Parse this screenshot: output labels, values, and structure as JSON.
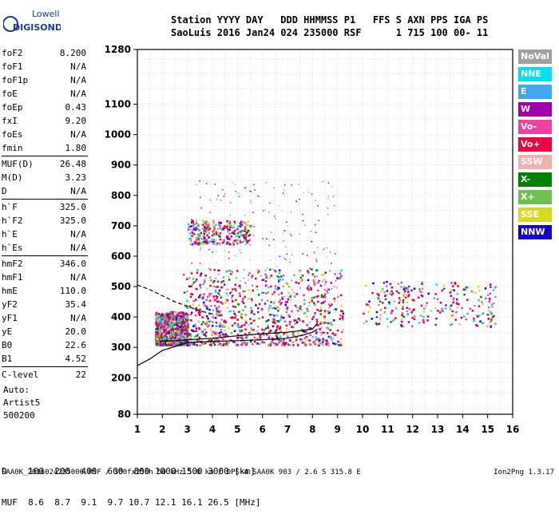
{
  "header": {
    "logo_line1": "Lowell",
    "logo_line2": "DIGISONDE",
    "line1": "Station YYYY DAY   DDD HHMMSS P1   FFS S AXN PPS IGA PS",
    "line2": "SaoLuis 2016 Jan24 024 235000 RSF      1 715 100 00- 11"
  },
  "params": [
    {
      "name": "foF2",
      "value": "8.200"
    },
    {
      "name": "foF1",
      "value": "N/A"
    },
    {
      "name": "foF1p",
      "value": "N/A"
    },
    {
      "name": "foE",
      "value": "N/A"
    },
    {
      "name": "foEp",
      "value": "0.43"
    },
    {
      "name": "fxI",
      "value": "9.20"
    },
    {
      "name": "foEs",
      "value": "N/A"
    },
    {
      "name": "fmin",
      "value": "1.80"
    },
    {
      "name": "MUF(D)",
      "value": "26.48"
    },
    {
      "name": "M(D)",
      "value": "3.23"
    },
    {
      "name": "D",
      "value": "N/A"
    },
    {
      "name": "h`F",
      "value": "325.0"
    },
    {
      "name": "h`F2",
      "value": "325.0"
    },
    {
      "name": "h`E",
      "value": "N/A"
    },
    {
      "name": "h`Es",
      "value": "N/A"
    },
    {
      "name": "hmF2",
      "value": "346.0"
    },
    {
      "name": "hmF1",
      "value": "N/A"
    },
    {
      "name": "hmE",
      "value": "110.0"
    },
    {
      "name": "yF2",
      "value": "35.4"
    },
    {
      "name": "yF1",
      "value": "N/A"
    },
    {
      "name": "yE",
      "value": "20.0"
    },
    {
      "name": "B0",
      "value": "22.6"
    },
    {
      "name": "B1",
      "value": "4.52"
    },
    {
      "name": "C-level",
      "value": "22"
    }
  ],
  "autoscale": {
    "label": "Auto:",
    "artist": "Artist5",
    "version": "500200"
  },
  "legend": [
    {
      "label": "NoVal",
      "color": "#a0a0a0"
    },
    {
      "label": "NNE",
      "color": "#00e0f0"
    },
    {
      "label": "E",
      "color": "#40a8f0"
    },
    {
      "label": "W",
      "color": "#a000a8"
    },
    {
      "label": "Vo-",
      "color": "#f040a0"
    },
    {
      "label": "Vo+",
      "color": "#f00040"
    },
    {
      "label": "SSW",
      "color": "#f0b0b0"
    },
    {
      "label": "X-",
      "color": "#008000"
    },
    {
      "label": "X+",
      "color": "#70c050"
    },
    {
      "label": "SSE",
      "color": "#d8d820"
    },
    {
      "label": "NNW",
      "color": "#1800c8"
    }
  ],
  "dmuf": {
    "d_line": "D    100  200  400  600  800 1000 1500 3000 [km]",
    "muf_line": "MUF  8.6  8.7  9.1  9.7 10.7 12.1 16.1 26.5 [MHz]"
  },
  "footer": {
    "left": "SAA0K_2016024235000.RSF / 300fx256h 50 kHz 5.0 km / DPS-4 SAA0K 903 / 2.6 S 315.8 E",
    "right": "Ion2Png 1.3.17"
  },
  "chart_data": {
    "type": "scatter",
    "x_ticks": [
      1,
      2,
      3,
      4,
      5,
      6,
      7,
      8,
      9,
      10,
      11,
      12,
      13,
      14,
      15,
      16
    ],
    "y_ticks": [
      80,
      200,
      300,
      400,
      500,
      600,
      700,
      800,
      900,
      1000,
      1100,
      1280
    ],
    "xlim": [
      1,
      16
    ],
    "ylim": [
      80,
      1280
    ],
    "grid": true,
    "clusters": [
      {
        "freq": [
          1.7,
          3.0
        ],
        "height": [
          310,
          420
        ],
        "density": "high"
      },
      {
        "freq": [
          2.8,
          9.2
        ],
        "height": [
          310,
          560
        ],
        "density": "high"
      },
      {
        "freq": [
          3.0,
          5.5
        ],
        "height": [
          640,
          720
        ],
        "density": "medium"
      },
      {
        "freq": [
          3.0,
          9.0
        ],
        "height": [
          420,
          850
        ],
        "density": "low"
      },
      {
        "freq": [
          10.0,
          15.3
        ],
        "height": [
          370,
          520
        ],
        "density": "medium"
      }
    ],
    "curves": {
      "true_height_profile": {
        "style": "solid",
        "freq": [
          1.0,
          1.5,
          2.0,
          3.0,
          4.0,
          5.0,
          6.0,
          7.0,
          7.6,
          8.0,
          8.2
        ],
        "height": [
          240,
          262,
          290,
          315,
          320,
          322,
          325,
          330,
          340,
          350,
          360
        ]
      },
      "trace_fit": {
        "style": "solid",
        "freq": [
          1.9,
          2.5,
          3.0,
          4.0,
          5.0,
          6.0,
          7.0,
          7.5,
          8.0,
          8.2
        ],
        "height": [
          320,
          322,
          325,
          330,
          338,
          345,
          350,
          355,
          360,
          380
        ]
      },
      "dashed_guide": {
        "style": "dashed",
        "freq": [
          1.0,
          1.5,
          2.0,
          2.5,
          3.0,
          3.5,
          4.0
        ],
        "height": [
          505,
          490,
          470,
          450,
          435,
          420,
          410
        ]
      }
    }
  }
}
